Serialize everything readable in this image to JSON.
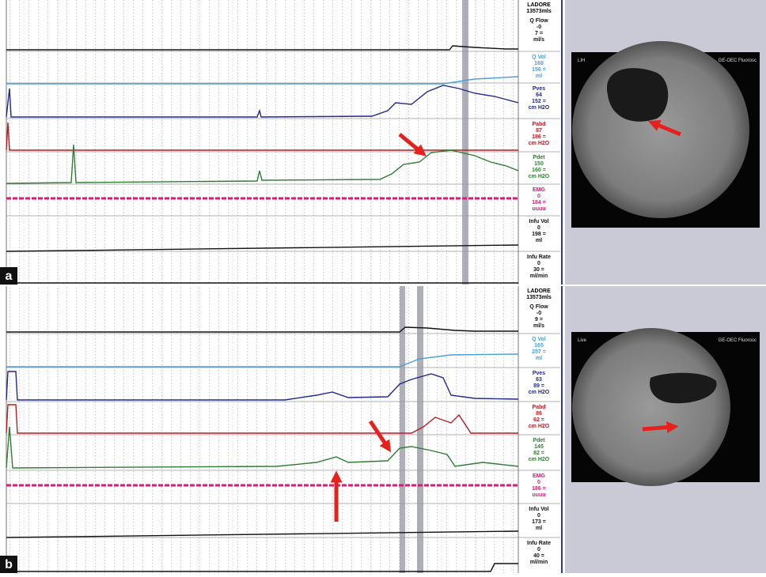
{
  "panels": [
    {
      "label": "a",
      "header": [
        "LADORE",
        "13573mls"
      ],
      "channels": [
        {
          "name": "Q Flow",
          "lines": [
            "-0",
            "7 =",
            "ml/s"
          ]
        },
        {
          "name": "Q Vol",
          "lines": [
            "168",
            "156 =",
            "ml"
          ]
        },
        {
          "name": "Pves",
          "lines": [
            "64",
            "152 =",
            "cm H2O"
          ]
        },
        {
          "name": "Pabd",
          "lines": [
            "87",
            "186 =",
            "cm H2O"
          ]
        },
        {
          "name": "Pdet",
          "lines": [
            "150",
            "160 =",
            "cm H2O"
          ]
        },
        {
          "name": "EMG",
          "lines": [
            "0",
            "184 =",
            "uuuu"
          ]
        },
        {
          "name": "Infu Vol",
          "lines": [
            "0",
            "198 =",
            "ml"
          ]
        },
        {
          "name": "Infu Rate",
          "lines": [
            "0",
            "30 =",
            "ml/min"
          ]
        }
      ],
      "image_texts": [
        "LIH",
        "GE-OEC Fluorosc"
      ]
    },
    {
      "label": "b",
      "header": [
        "LADORE",
        "13573mls"
      ],
      "channels": [
        {
          "name": "Q Flow",
          "lines": [
            "-0",
            "9 =",
            "ml/s"
          ]
        },
        {
          "name": "Q Vol",
          "lines": [
            "165",
            "257 =",
            "ml"
          ]
        },
        {
          "name": "Pves",
          "lines": [
            "63",
            "89 =",
            "cm H2O"
          ]
        },
        {
          "name": "Pabd",
          "lines": [
            "86",
            "62 =",
            "cm H2O"
          ]
        },
        {
          "name": "Pdet",
          "lines": [
            "145",
            "82 =",
            "cm H2O"
          ]
        },
        {
          "name": "EMG",
          "lines": [
            "0",
            "186 =",
            "uuuu"
          ]
        },
        {
          "name": "Infu Vol",
          "lines": [
            "0",
            "173 =",
            "ml"
          ]
        },
        {
          "name": "Infu Rate",
          "lines": [
            "0",
            "40 =",
            "ml/min"
          ]
        }
      ],
      "image_texts": [
        "Live",
        "GE-OEC Fluorosc"
      ]
    }
  ]
}
